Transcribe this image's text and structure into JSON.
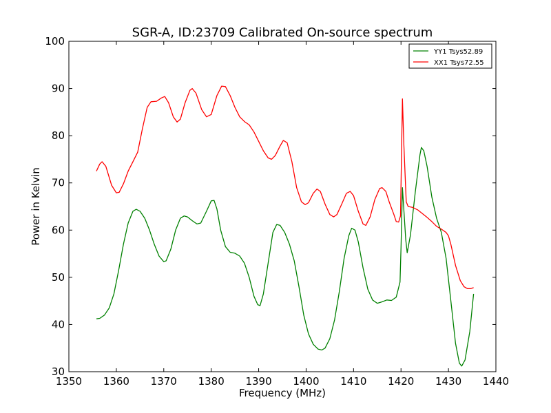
{
  "chart_data": {
    "type": "line",
    "title": "SGR-A, ID:23709 Calibrated On-source spectrum",
    "xlabel": "Frequency (MHz)",
    "ylabel": "Power in Kelvin",
    "xlim": [
      1350,
      1440
    ],
    "ylim": [
      30,
      100
    ],
    "xticks": [
      1350,
      1360,
      1370,
      1380,
      1390,
      1400,
      1410,
      1420,
      1430,
      1440
    ],
    "yticks": [
      30,
      40,
      50,
      60,
      70,
      80,
      90,
      100
    ],
    "legend_position": "top-right",
    "grid": false,
    "series": [
      {
        "name": "YY1 Tsys52.89",
        "color": "#008000",
        "points": [
          [
            1355.8,
            41.2
          ],
          [
            1356.5,
            41.3
          ],
          [
            1357.5,
            42.0
          ],
          [
            1358.5,
            43.5
          ],
          [
            1359.5,
            46.5
          ],
          [
            1360.5,
            51.5
          ],
          [
            1361.5,
            57.0
          ],
          [
            1362.5,
            61.5
          ],
          [
            1363.5,
            64.0
          ],
          [
            1364.2,
            64.4
          ],
          [
            1365.0,
            64.0
          ],
          [
            1366.0,
            62.5
          ],
          [
            1367.0,
            60.0
          ],
          [
            1368.0,
            57.0
          ],
          [
            1369.0,
            54.5
          ],
          [
            1370.0,
            53.3
          ],
          [
            1370.5,
            53.5
          ],
          [
            1371.5,
            56.0
          ],
          [
            1372.5,
            60.0
          ],
          [
            1373.5,
            62.5
          ],
          [
            1374.3,
            63.0
          ],
          [
            1375.0,
            62.8
          ],
          [
            1376.0,
            62.0
          ],
          [
            1377.0,
            61.3
          ],
          [
            1377.8,
            61.5
          ],
          [
            1379.0,
            64.0
          ],
          [
            1380.0,
            66.2
          ],
          [
            1380.6,
            66.3
          ],
          [
            1381.2,
            64.5
          ],
          [
            1382.0,
            60.0
          ],
          [
            1383.0,
            56.5
          ],
          [
            1384.0,
            55.3
          ],
          [
            1385.0,
            55.1
          ],
          [
            1386.0,
            54.5
          ],
          [
            1387.0,
            53.0
          ],
          [
            1388.0,
            50.0
          ],
          [
            1389.0,
            46.0
          ],
          [
            1389.8,
            44.2
          ],
          [
            1390.3,
            44.0
          ],
          [
            1391.0,
            46.5
          ],
          [
            1392.0,
            53.0
          ],
          [
            1393.0,
            59.5
          ],
          [
            1393.8,
            61.2
          ],
          [
            1394.5,
            61.0
          ],
          [
            1395.5,
            59.5
          ],
          [
            1396.5,
            57.0
          ],
          [
            1397.5,
            53.5
          ],
          [
            1398.5,
            48.0
          ],
          [
            1399.5,
            42.0
          ],
          [
            1400.5,
            38.0
          ],
          [
            1401.5,
            35.8
          ],
          [
            1402.5,
            34.8
          ],
          [
            1403.3,
            34.6
          ],
          [
            1404.0,
            35.0
          ],
          [
            1405.0,
            37.0
          ],
          [
            1406.0,
            41.0
          ],
          [
            1407.0,
            47.0
          ],
          [
            1408.0,
            54.0
          ],
          [
            1409.0,
            58.8
          ],
          [
            1409.6,
            60.4
          ],
          [
            1410.3,
            60.0
          ],
          [
            1411.0,
            57.5
          ],
          [
            1412.0,
            52.0
          ],
          [
            1413.0,
            47.5
          ],
          [
            1414.0,
            45.2
          ],
          [
            1415.0,
            44.5
          ],
          [
            1416.0,
            44.8
          ],
          [
            1417.0,
            45.2
          ],
          [
            1418.0,
            45.1
          ],
          [
            1419.0,
            45.8
          ],
          [
            1419.8,
            49.0
          ],
          [
            1420.0,
            56.0
          ],
          [
            1420.3,
            69.0
          ],
          [
            1421.0,
            58.0
          ],
          [
            1421.3,
            55.2
          ],
          [
            1422.0,
            59.0
          ],
          [
            1423.0,
            68.0
          ],
          [
            1424.0,
            76.0
          ],
          [
            1424.3,
            77.5
          ],
          [
            1424.8,
            76.8
          ],
          [
            1425.5,
            73.5
          ],
          [
            1426.5,
            67.0
          ],
          [
            1427.5,
            62.5
          ],
          [
            1428.5,
            59.5
          ],
          [
            1429.5,
            54.0
          ],
          [
            1430.5,
            45.0
          ],
          [
            1431.5,
            36.0
          ],
          [
            1432.3,
            31.8
          ],
          [
            1432.8,
            31.2
          ],
          [
            1433.5,
            32.5
          ],
          [
            1434.5,
            38.5
          ],
          [
            1435.3,
            46.5
          ]
        ]
      },
      {
        "name": "XX1 Tsys72.55",
        "color": "#ff0000",
        "points": [
          [
            1355.8,
            72.5
          ],
          [
            1356.5,
            74.0
          ],
          [
            1357.0,
            74.5
          ],
          [
            1357.8,
            73.5
          ],
          [
            1359.0,
            69.5
          ],
          [
            1360.0,
            67.9
          ],
          [
            1360.6,
            68.0
          ],
          [
            1361.5,
            69.8
          ],
          [
            1362.5,
            72.5
          ],
          [
            1363.5,
            74.5
          ],
          [
            1364.5,
            76.5
          ],
          [
            1365.5,
            81.5
          ],
          [
            1366.5,
            86.0
          ],
          [
            1367.3,
            87.2
          ],
          [
            1368.5,
            87.3
          ],
          [
            1369.5,
            88.0
          ],
          [
            1370.2,
            88.3
          ],
          [
            1371.0,
            87.0
          ],
          [
            1372.0,
            84.0
          ],
          [
            1372.8,
            82.9
          ],
          [
            1373.5,
            83.5
          ],
          [
            1374.5,
            87.0
          ],
          [
            1375.5,
            89.6
          ],
          [
            1376.0,
            90.0
          ],
          [
            1376.8,
            89.0
          ],
          [
            1378.0,
            85.5
          ],
          [
            1379.0,
            84.0
          ],
          [
            1380.0,
            84.5
          ],
          [
            1381.2,
            88.5
          ],
          [
            1382.2,
            90.5
          ],
          [
            1383.0,
            90.4
          ],
          [
            1384.0,
            88.5
          ],
          [
            1385.0,
            86.0
          ],
          [
            1386.0,
            84.0
          ],
          [
            1387.0,
            83.0
          ],
          [
            1388.0,
            82.3
          ],
          [
            1389.0,
            80.8
          ],
          [
            1390.0,
            78.8
          ],
          [
            1391.0,
            76.8
          ],
          [
            1392.0,
            75.3
          ],
          [
            1392.7,
            75.0
          ],
          [
            1393.5,
            75.8
          ],
          [
            1394.5,
            77.8
          ],
          [
            1395.2,
            79.0
          ],
          [
            1396.0,
            78.5
          ],
          [
            1397.0,
            74.5
          ],
          [
            1398.0,
            69.0
          ],
          [
            1399.0,
            66.0
          ],
          [
            1399.8,
            65.4
          ],
          [
            1400.5,
            65.8
          ],
          [
            1401.5,
            67.8
          ],
          [
            1402.3,
            68.7
          ],
          [
            1403.0,
            68.2
          ],
          [
            1404.0,
            65.5
          ],
          [
            1405.0,
            63.3
          ],
          [
            1405.8,
            62.8
          ],
          [
            1406.5,
            63.3
          ],
          [
            1407.5,
            65.5
          ],
          [
            1408.5,
            67.8
          ],
          [
            1409.3,
            68.2
          ],
          [
            1410.0,
            67.3
          ],
          [
            1411.0,
            64.0
          ],
          [
            1412.0,
            61.3
          ],
          [
            1412.6,
            61.0
          ],
          [
            1413.5,
            62.8
          ],
          [
            1414.5,
            66.5
          ],
          [
            1415.5,
            68.8
          ],
          [
            1416.0,
            69.0
          ],
          [
            1416.8,
            68.2
          ],
          [
            1417.5,
            66.0
          ],
          [
            1418.5,
            63.3
          ],
          [
            1419.0,
            61.8
          ],
          [
            1419.5,
            61.7
          ],
          [
            1419.9,
            63.0
          ],
          [
            1420.3,
            87.8
          ],
          [
            1420.6,
            78.0
          ],
          [
            1421.1,
            66.0
          ],
          [
            1421.5,
            65.0
          ],
          [
            1422.5,
            64.8
          ],
          [
            1423.5,
            64.3
          ],
          [
            1424.5,
            63.5
          ],
          [
            1425.5,
            62.7
          ],
          [
            1426.5,
            61.8
          ],
          [
            1427.5,
            60.8
          ],
          [
            1428.5,
            60.2
          ],
          [
            1429.5,
            59.5
          ],
          [
            1430.0,
            58.8
          ],
          [
            1430.5,
            57.0
          ],
          [
            1431.5,
            52.5
          ],
          [
            1432.5,
            49.3
          ],
          [
            1433.3,
            48.0
          ],
          [
            1434.0,
            47.6
          ],
          [
            1434.7,
            47.6
          ],
          [
            1435.3,
            47.8
          ]
        ]
      }
    ]
  }
}
